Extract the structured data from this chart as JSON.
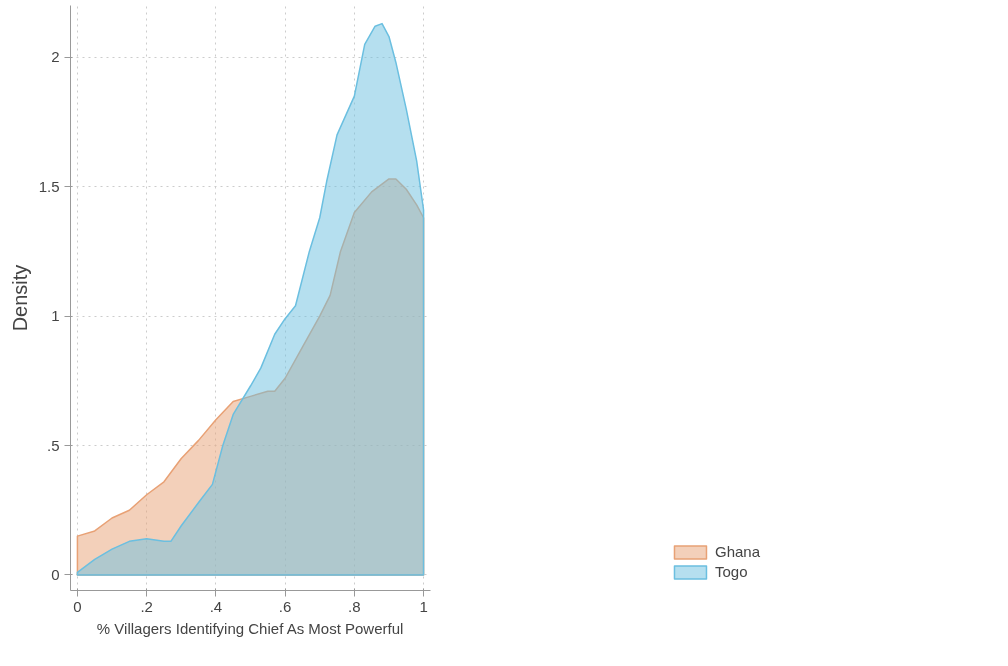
{
  "chart_data": {
    "type": "area",
    "xlabel": "% Villagers Identifying Chief As Most Powerful",
    "ylabel": "Density",
    "xlim": [
      -0.02,
      1.02
    ],
    "ylim": [
      -0.06,
      2.2
    ],
    "xticks": [
      {
        "value": 0,
        "label": "0"
      },
      {
        "value": 0.2,
        "label": ".2"
      },
      {
        "value": 0.4,
        "label": ".4"
      },
      {
        "value": 0.6,
        "label": ".6"
      },
      {
        "value": 0.8,
        "label": ".8"
      },
      {
        "value": 1,
        "label": "1"
      }
    ],
    "yticks": [
      {
        "value": 0,
        "label": "0"
      },
      {
        "value": 0.5,
        "label": ".5"
      },
      {
        "value": 1,
        "label": "1"
      },
      {
        "value": 1.5,
        "label": "1.5"
      },
      {
        "value": 2,
        "label": "2"
      }
    ],
    "grid": true,
    "legend": "bottom right",
    "series": [
      {
        "name": "Ghana",
        "color": "#e8a175",
        "x": [
          0,
          0.05,
          0.1,
          0.15,
          0.2,
          0.25,
          0.3,
          0.35,
          0.4,
          0.45,
          0.5,
          0.55,
          0.57,
          0.6,
          0.65,
          0.7,
          0.73,
          0.76,
          0.8,
          0.85,
          0.9,
          0.92,
          0.95,
          0.98,
          1
        ],
        "values": [
          0.15,
          0.17,
          0.22,
          0.25,
          0.31,
          0.36,
          0.45,
          0.52,
          0.6,
          0.67,
          0.69,
          0.71,
          0.71,
          0.76,
          0.88,
          1.0,
          1.08,
          1.25,
          1.4,
          1.48,
          1.53,
          1.53,
          1.49,
          1.43,
          1.38
        ]
      },
      {
        "name": "Togo",
        "color": "#6bbfe0",
        "x": [
          0,
          0.05,
          0.1,
          0.15,
          0.2,
          0.25,
          0.27,
          0.3,
          0.35,
          0.39,
          0.42,
          0.45,
          0.5,
          0.53,
          0.57,
          0.6,
          0.63,
          0.67,
          0.7,
          0.72,
          0.75,
          0.8,
          0.83,
          0.86,
          0.88,
          0.9,
          0.92,
          0.95,
          0.98,
          1
        ],
        "values": [
          0.01,
          0.06,
          0.1,
          0.13,
          0.14,
          0.13,
          0.13,
          0.19,
          0.28,
          0.35,
          0.5,
          0.62,
          0.73,
          0.8,
          0.93,
          0.99,
          1.04,
          1.25,
          1.38,
          1.52,
          1.7,
          1.85,
          2.05,
          2.12,
          2.13,
          2.08,
          1.98,
          1.8,
          1.6,
          1.41
        ]
      }
    ]
  }
}
